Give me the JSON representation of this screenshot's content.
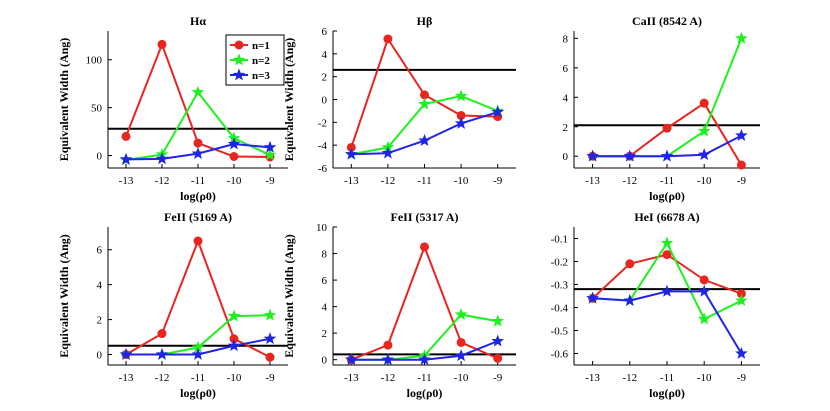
{
  "figure": {
    "background": "#ffffff"
  },
  "chart_data": [
    {
      "type": "line",
      "title": "Hα",
      "xlabel": "log(ρ0)",
      "ylabel": "Equivalent Width (Ang)",
      "x": [
        -13,
        -12,
        -11,
        -10,
        -9
      ],
      "xlim": [
        -13.5,
        -8.5
      ],
      "ylim": [
        -13,
        130
      ],
      "yticks": [
        0,
        50,
        100
      ],
      "reference_line": 28,
      "legend": {
        "show": true,
        "placement": "top-right"
      },
      "series": [
        {
          "name": "n=1",
          "color": "#e8251f",
          "marker": "circle",
          "values": [
            20,
            116,
            13,
            -1,
            -1.5
          ]
        },
        {
          "name": "n=2",
          "color": "#1ff01f",
          "marker": "star",
          "values": [
            -4.5,
            1,
            66,
            18,
            0.5
          ]
        },
        {
          "name": "n=3",
          "color": "#1f24e6",
          "marker": "star",
          "values": [
            -4,
            -3.5,
            2,
            12,
            8.5
          ]
        }
      ]
    },
    {
      "type": "line",
      "title": "Hβ",
      "xlabel": "",
      "ylabel": "Equivalent Width (Ang)",
      "x": [
        -13,
        -12,
        -11,
        -10,
        -9
      ],
      "xlim": [
        -13.5,
        -8.5
      ],
      "ylim": [
        -6,
        6
      ],
      "yticks": [
        -6,
        -4,
        -2,
        0,
        2,
        4,
        6
      ],
      "reference_line": 2.6,
      "legend": {
        "show": false
      },
      "series": [
        {
          "name": "n=1",
          "color": "#e8251f",
          "marker": "circle",
          "values": [
            -4.2,
            5.3,
            0.4,
            -1.4,
            -1.5
          ]
        },
        {
          "name": "n=2",
          "color": "#1ff01f",
          "marker": "star",
          "values": [
            -4.8,
            -4.2,
            -0.4,
            0.3,
            -1.0
          ]
        },
        {
          "name": "n=3",
          "color": "#1f24e6",
          "marker": "star",
          "values": [
            -4.8,
            -4.7,
            -3.6,
            -2.1,
            -1.1
          ]
        }
      ]
    },
    {
      "type": "line",
      "title": "CaII (8542 A)",
      "xlabel": "log(ρ0)",
      "ylabel": "",
      "x": [
        -13,
        -12,
        -11,
        -10,
        -9
      ],
      "xlim": [
        -13.5,
        -8.5
      ],
      "ylim": [
        -0.8,
        8.5
      ],
      "yticks": [
        0,
        2,
        4,
        6,
        8
      ],
      "reference_line": 2.1,
      "legend": {
        "show": false
      },
      "series": [
        {
          "name": "n=1",
          "color": "#e8251f",
          "marker": "circle",
          "values": [
            0,
            0,
            1.9,
            3.6,
            -0.6
          ]
        },
        {
          "name": "n=2",
          "color": "#1ff01f",
          "marker": "star",
          "values": [
            0,
            0,
            0,
            1.7,
            8.0
          ]
        },
        {
          "name": "n=3",
          "color": "#1f24e6",
          "marker": "star",
          "values": [
            0,
            0,
            0,
            0.1,
            1.4
          ]
        }
      ]
    },
    {
      "type": "line",
      "title": "FeII (5169 A)",
      "xlabel": "log(ρ0)",
      "ylabel": "Equivalent Width (Ang)",
      "x": [
        -13,
        -12,
        -11,
        -10,
        -9
      ],
      "xlim": [
        -13.5,
        -8.5
      ],
      "ylim": [
        -0.6,
        7.3
      ],
      "yticks": [
        0,
        2,
        4,
        6
      ],
      "reference_line": 0.5,
      "legend": {
        "show": false
      },
      "series": [
        {
          "name": "n=1",
          "color": "#e8251f",
          "marker": "circle",
          "values": [
            0,
            1.2,
            6.5,
            0.9,
            -0.15
          ]
        },
        {
          "name": "n=2",
          "color": "#1ff01f",
          "marker": "star",
          "values": [
            0,
            0,
            0.4,
            2.2,
            2.25
          ]
        },
        {
          "name": "n=3",
          "color": "#1f24e6",
          "marker": "star",
          "values": [
            0,
            0,
            0,
            0.5,
            0.9
          ]
        }
      ]
    },
    {
      "type": "line",
      "title": "FeII (5317 A)",
      "xlabel": "log(ρ0)",
      "ylabel": "Equivalent Width (Ang)",
      "x": [
        -13,
        -12,
        -11,
        -10,
        -9
      ],
      "xlim": [
        -13.5,
        -8.5
      ],
      "ylim": [
        -0.4,
        10
      ],
      "yticks": [
        0,
        2,
        4,
        6,
        8,
        10
      ],
      "reference_line": 0.4,
      "legend": {
        "show": false
      },
      "series": [
        {
          "name": "n=1",
          "color": "#e8251f",
          "marker": "circle",
          "values": [
            0,
            1.1,
            8.5,
            1.3,
            0.1
          ]
        },
        {
          "name": "n=2",
          "color": "#1ff01f",
          "marker": "star",
          "values": [
            0,
            0,
            0.3,
            3.4,
            2.9
          ]
        },
        {
          "name": "n=3",
          "color": "#1f24e6",
          "marker": "star",
          "values": [
            0,
            0,
            0,
            0.3,
            1.4
          ]
        }
      ]
    },
    {
      "type": "line",
      "title": "HeI (6678 A)",
      "xlabel": "log(ρ0)",
      "ylabel": "",
      "x": [
        -13,
        -12,
        -11,
        -10,
        -9
      ],
      "xlim": [
        -13.5,
        -8.5
      ],
      "ylim": [
        -0.65,
        -0.05
      ],
      "yticks": [
        -0.6,
        -0.5,
        -0.4,
        -0.3,
        -0.2,
        -0.1
      ],
      "reference_line": -0.32,
      "legend": {
        "show": false
      },
      "series": [
        {
          "name": "n=1",
          "color": "#e8251f",
          "marker": "circle",
          "values": [
            -0.36,
            -0.21,
            -0.17,
            -0.28,
            -0.34
          ]
        },
        {
          "name": "n=2",
          "color": "#1ff01f",
          "marker": "star",
          "values": [
            -0.36,
            -0.37,
            -0.12,
            -0.45,
            -0.37
          ]
        },
        {
          "name": "n=3",
          "color": "#1f24e6",
          "marker": "star",
          "values": [
            -0.36,
            -0.37,
            -0.33,
            -0.33,
            -0.6
          ]
        }
      ]
    }
  ]
}
